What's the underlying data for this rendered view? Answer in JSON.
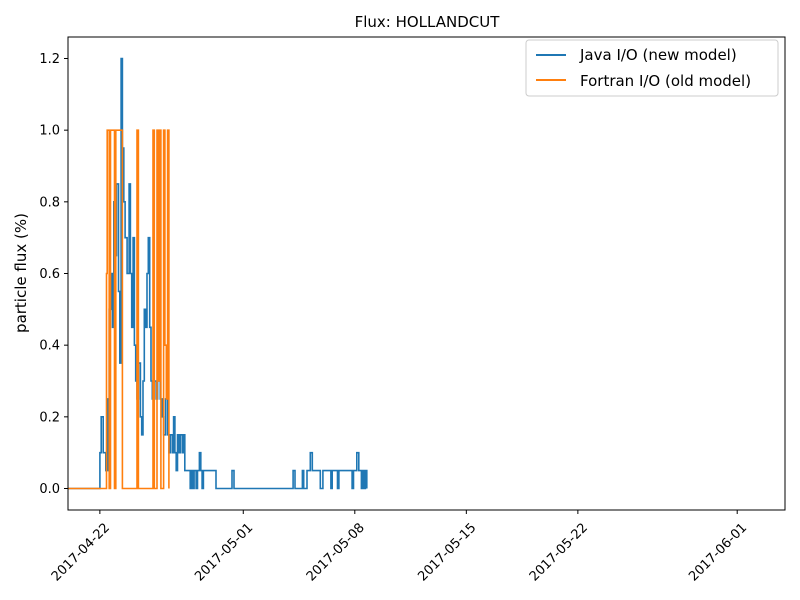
{
  "chart_data": {
    "type": "line",
    "title": "Flux: HOLLANDCUT",
    "xlabel": "",
    "ylabel": "particle flux (%)",
    "x_range": [
      "2017-04-20T00:00",
      "2017-06-04T00:00"
    ],
    "ylim": [
      -0.06,
      1.26
    ],
    "x_ticks": [
      "2017-04-22",
      "2017-05-01",
      "2017-05-08",
      "2017-05-15",
      "2017-05-22",
      "2017-06-01"
    ],
    "y_ticks": [
      "0.0",
      "0.2",
      "0.4",
      "0.6",
      "0.8",
      "1.0",
      "1.2"
    ],
    "grid": false,
    "legend_position": "top-right",
    "step": true,
    "series": [
      {
        "name": "Java I/O (new model)",
        "color": "#1f77b4",
        "points": [
          [
            "2017-04-20T00:00",
            0.0
          ],
          [
            "2017-04-22T00:00",
            0.0
          ],
          [
            "2017-04-22T00:00",
            0.1
          ],
          [
            "2017-04-22T02:00",
            0.2
          ],
          [
            "2017-04-22T05:00",
            0.1
          ],
          [
            "2017-04-22T09:00",
            0.05
          ],
          [
            "2017-04-22T12:00",
            0.25
          ],
          [
            "2017-04-22T14:00",
            0.5
          ],
          [
            "2017-04-22T17:00",
            0.6
          ],
          [
            "2017-04-22T19:00",
            0.45
          ],
          [
            "2017-04-22T21:00",
            0.8
          ],
          [
            "2017-04-22T23:00",
            0.65
          ],
          [
            "2017-04-23T01:00",
            0.85
          ],
          [
            "2017-04-23T04:00",
            0.55
          ],
          [
            "2017-04-23T06:00",
            0.35
          ],
          [
            "2017-04-23T08:00",
            1.2
          ],
          [
            "2017-04-23T10:00",
            0.95
          ],
          [
            "2017-04-23T12:00",
            0.8
          ],
          [
            "2017-04-23T14:00",
            0.7
          ],
          [
            "2017-04-23T17:00",
            0.6
          ],
          [
            "2017-04-23T20:00",
            0.85
          ],
          [
            "2017-04-23T22:00",
            0.6
          ],
          [
            "2017-04-24T00:00",
            0.45
          ],
          [
            "2017-04-24T02:00",
            0.7
          ],
          [
            "2017-04-24T04:00",
            0.4
          ],
          [
            "2017-04-24T06:00",
            0.3
          ],
          [
            "2017-04-24T08:00",
            0.25
          ],
          [
            "2017-04-24T10:00",
            0.35
          ],
          [
            "2017-04-24T13:00",
            0.2
          ],
          [
            "2017-04-24T15:00",
            0.15
          ],
          [
            "2017-04-24T17:00",
            0.3
          ],
          [
            "2017-04-24T19:00",
            0.5
          ],
          [
            "2017-04-24T21:00",
            0.45
          ],
          [
            "2017-04-24T23:00",
            0.6
          ],
          [
            "2017-04-25T01:00",
            0.7
          ],
          [
            "2017-04-25T03:00",
            0.45
          ],
          [
            "2017-04-25T05:00",
            0.3
          ],
          [
            "2017-04-25T07:00",
            0.25
          ],
          [
            "2017-04-25T10:00",
            0.3
          ],
          [
            "2017-04-25T13:00",
            0.25
          ],
          [
            "2017-04-25T15:00",
            0.35
          ],
          [
            "2017-04-25T17:00",
            0.3
          ],
          [
            "2017-04-25T19:00",
            0.25
          ],
          [
            "2017-04-25T22:00",
            0.2
          ],
          [
            "2017-04-26T00:00",
            0.15
          ],
          [
            "2017-04-26T03:00",
            0.25
          ],
          [
            "2017-04-26T06:00",
            0.15
          ],
          [
            "2017-04-26T08:00",
            0.1
          ],
          [
            "2017-04-26T10:00",
            0.15
          ],
          [
            "2017-04-26T13:00",
            0.1
          ],
          [
            "2017-04-26T15:00",
            0.2
          ],
          [
            "2017-04-26T17:00",
            0.1
          ],
          [
            "2017-04-26T19:00",
            0.05
          ],
          [
            "2017-04-26T21:00",
            0.15
          ],
          [
            "2017-04-26T23:00",
            0.1
          ],
          [
            "2017-04-27T01:00",
            0.15
          ],
          [
            "2017-04-27T04:00",
            0.1
          ],
          [
            "2017-04-27T06:00",
            0.15
          ],
          [
            "2017-04-27T08:00",
            0.05
          ],
          [
            "2017-04-27T14:00",
            0.05
          ],
          [
            "2017-04-27T16:00",
            0.0
          ],
          [
            "2017-04-27T18:00",
            0.05
          ],
          [
            "2017-04-27T20:00",
            0.0
          ],
          [
            "2017-04-27T22:00",
            0.05
          ],
          [
            "2017-04-28T01:00",
            0.0
          ],
          [
            "2017-04-28T03:00",
            0.05
          ],
          [
            "2017-04-28T06:00",
            0.1
          ],
          [
            "2017-04-28T08:00",
            0.05
          ],
          [
            "2017-04-28T10:00",
            0.0
          ],
          [
            "2017-04-28T12:00",
            0.05
          ],
          [
            "2017-04-29T07:00",
            0.0
          ],
          [
            "2017-04-30T07:00",
            0.05
          ],
          [
            "2017-04-30T10:00",
            0.0
          ],
          [
            "2017-05-04T03:00",
            0.05
          ],
          [
            "2017-05-04T06:00",
            0.0
          ],
          [
            "2017-05-04T17:00",
            0.05
          ],
          [
            "2017-05-04T19:00",
            0.0
          ],
          [
            "2017-05-05T00:00",
            0.05
          ],
          [
            "2017-05-05T05:00",
            0.1
          ],
          [
            "2017-05-05T08:00",
            0.05
          ],
          [
            "2017-05-05T20:00",
            0.0
          ],
          [
            "2017-05-06T00:00",
            0.05
          ],
          [
            "2017-05-06T12:00",
            0.0
          ],
          [
            "2017-05-06T14:00",
            0.05
          ],
          [
            "2017-05-06T22:00",
            0.0
          ],
          [
            "2017-05-07T00:00",
            0.05
          ],
          [
            "2017-05-07T20:00",
            0.0
          ],
          [
            "2017-05-07T22:00",
            0.05
          ],
          [
            "2017-05-08T03:00",
            0.1
          ],
          [
            "2017-05-08T06:00",
            0.05
          ],
          [
            "2017-05-08T10:00",
            0.0
          ],
          [
            "2017-05-08T12:00",
            0.05
          ],
          [
            "2017-05-08T14:00",
            0.0
          ],
          [
            "2017-05-08T16:00",
            0.05
          ],
          [
            "2017-05-08T18:00",
            0.0
          ]
        ]
      },
      {
        "name": "Fortran I/O (old model)",
        "color": "#ff7f0e",
        "points": [
          [
            "2017-04-20T00:00",
            0.0
          ],
          [
            "2017-04-22T10:00",
            0.0
          ],
          [
            "2017-04-22T10:00",
            0.6
          ],
          [
            "2017-04-22T11:00",
            1.0
          ],
          [
            "2017-04-22T14:00",
            0.0
          ],
          [
            "2017-04-22T16:00",
            1.0
          ],
          [
            "2017-04-22T22:00",
            0.0
          ],
          [
            "2017-04-23T00:00",
            1.0
          ],
          [
            "2017-04-23T10:00",
            0.0
          ],
          [
            "2017-04-24T08:00",
            1.0
          ],
          [
            "2017-04-24T10:00",
            0.0
          ],
          [
            "2017-04-25T08:00",
            1.0
          ],
          [
            "2017-04-25T10:00",
            0.0
          ],
          [
            "2017-04-25T14:00",
            1.0
          ],
          [
            "2017-04-25T16:00",
            0.3
          ],
          [
            "2017-04-25T18:00",
            1.0
          ],
          [
            "2017-04-25T20:00",
            0.0
          ],
          [
            "2017-04-26T00:00",
            1.0
          ],
          [
            "2017-04-26T02:00",
            0.4
          ],
          [
            "2017-04-26T04:00",
            0.25
          ],
          [
            "2017-04-26T06:00",
            1.0
          ],
          [
            "2017-04-26T08:00",
            0.0
          ]
        ]
      }
    ]
  }
}
